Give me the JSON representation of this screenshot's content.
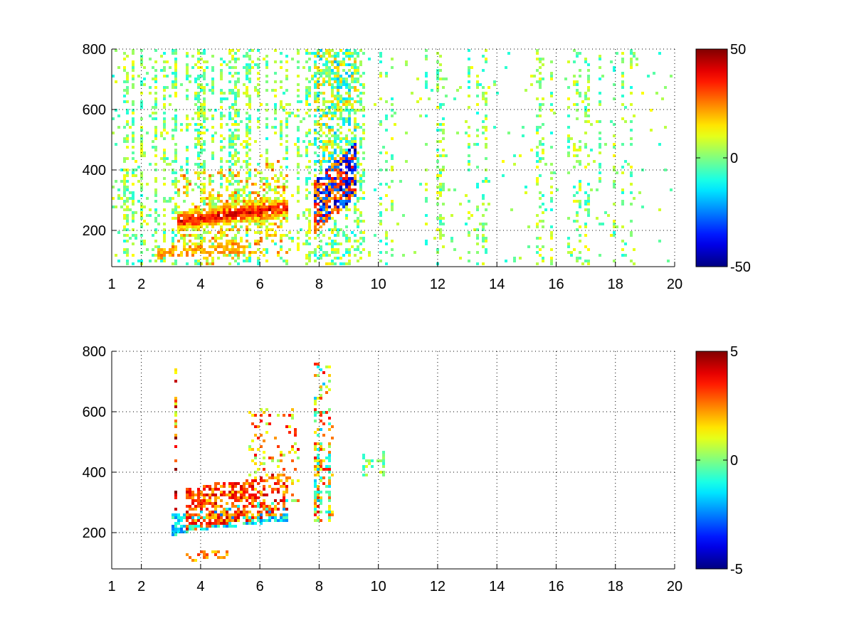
{
  "figure": {
    "background": "#ffffff",
    "colormap": "jet"
  },
  "chart_data": [
    {
      "type": "heatmap",
      "title": "",
      "xlabel": "",
      "ylabel": "",
      "xlim": [
        1,
        20
      ],
      "ylim": [
        80,
        800
      ],
      "xticks": [
        1,
        2,
        4,
        6,
        8,
        10,
        12,
        14,
        16,
        18,
        20
      ],
      "xtick_labels": [
        "1",
        "2",
        "4",
        "6",
        "8",
        "10",
        "12",
        "14",
        "16",
        "18",
        "20"
      ],
      "yticks": [
        200,
        400,
        600,
        800
      ],
      "ytick_labels": [
        "200",
        "400",
        "600",
        "800"
      ],
      "grid": true,
      "colorbar": {
        "min": -50,
        "max": 50,
        "ticks": [
          50,
          0,
          -50
        ],
        "tick_labels": [
          "50",
          "0",
          "-50"
        ],
        "colormap": "jet"
      },
      "features": [
        {
          "description": "red ridge",
          "x": [
            3.2,
            4.0,
            5.0,
            6.0,
            7.0
          ],
          "y": [
            225,
            235,
            250,
            260,
            275
          ],
          "value": 40
        },
        {
          "description": "red/blue pattern",
          "x": [
            7.8,
            8.5,
            9.3
          ],
          "y": [
            260,
            330,
            400
          ],
          "value": 35
        },
        {
          "description": "blue patch",
          "x": [
            8.0,
            9.3
          ],
          "y": [
            220,
            340
          ],
          "value": -45
        },
        {
          "description": "lower branch",
          "x": [
            2.5,
            5.5
          ],
          "y": [
            120,
            140
          ],
          "value": 25
        },
        {
          "description": "scatter",
          "x": [
            1,
            20
          ],
          "y": [
            80,
            800
          ],
          "value": 0
        }
      ]
    },
    {
      "type": "heatmap",
      "title": "",
      "xlabel": "",
      "ylabel": "",
      "xlim": [
        1,
        20
      ],
      "ylim": [
        80,
        800
      ],
      "xticks": [
        1,
        2,
        4,
        6,
        8,
        10,
        12,
        14,
        16,
        18,
        20
      ],
      "xtick_labels": [
        "1",
        "2",
        "4",
        "6",
        "8",
        "10",
        "12",
        "14",
        "16",
        "18",
        "20"
      ],
      "yticks": [
        200,
        400,
        600,
        800
      ],
      "ytick_labels": [
        "200",
        "400",
        "600",
        "800"
      ],
      "grid": true,
      "colorbar": {
        "min": -5,
        "max": 5,
        "ticks": [
          5,
          0,
          -5
        ],
        "tick_labels": [
          "5",
          "0",
          "-5"
        ],
        "colormap": "jet"
      },
      "features": [
        {
          "description": "red streaks",
          "x": [
            3.5,
            4.5,
            5.5,
            6.5,
            7.0
          ],
          "y": [
            270,
            290,
            300,
            320,
            330
          ],
          "value": 4
        },
        {
          "description": "green/cyan band",
          "x": [
            3.0,
            4.0,
            5.0,
            6.0,
            7.0
          ],
          "y": [
            220,
            240,
            250,
            260,
            270
          ],
          "value": -1.5
        },
        {
          "description": "mixed cluster",
          "x": [
            7.8,
            8.5,
            9.3
          ],
          "y": [
            250,
            350,
            450
          ],
          "value": 1
        },
        {
          "description": "lower streak",
          "x": [
            3.5,
            5.0
          ],
          "y": [
            110,
            130
          ],
          "value": 3
        }
      ]
    }
  ]
}
